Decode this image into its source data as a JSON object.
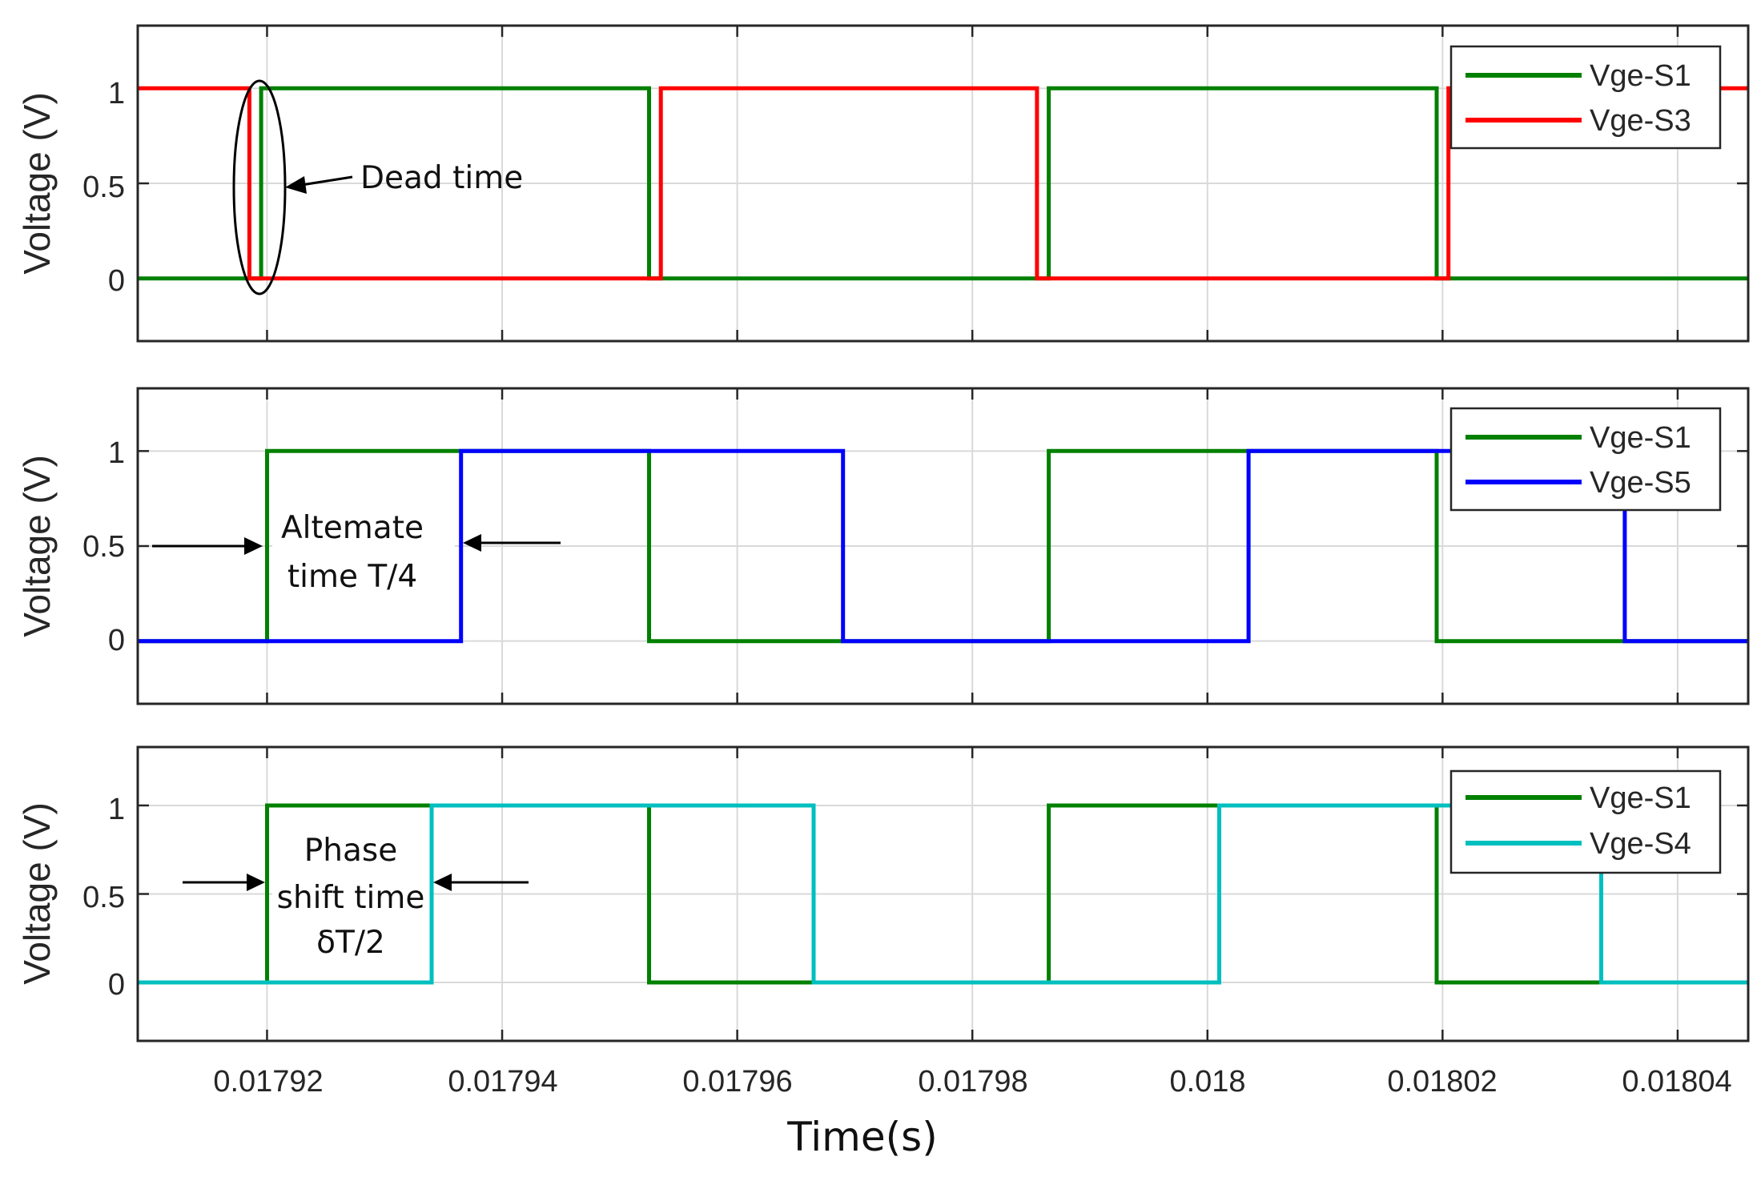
{
  "chart_data": [
    {
      "type": "line",
      "step": true,
      "ylabel": "Voltage (V)",
      "xlim": [
        0.017909,
        0.018046
      ],
      "ylim": [
        -0.33,
        1.33
      ],
      "yticks": [
        0,
        0.5,
        1
      ],
      "yticklabels": [
        "0",
        "0.5",
        "1"
      ],
      "grid": true,
      "legend_position": "top-right",
      "series": [
        {
          "name": "Vge-S1",
          "color": "#008000",
          "x": [
            0.017909,
            0.0179195,
            0.0179195,
            0.0179525,
            0.0179525,
            0.0179865,
            0.0179865,
            0.0180195,
            0.0180195,
            0.018046
          ],
          "y": [
            0,
            0,
            1,
            1,
            0,
            0,
            1,
            1,
            0,
            0
          ]
        },
        {
          "name": "Vge-S3",
          "color": "#ff0000",
          "x": [
            0.017909,
            0.0179185,
            0.0179185,
            0.0179535,
            0.0179535,
            0.0179855,
            0.0179855,
            0.0180205,
            0.0180205,
            0.018046
          ],
          "y": [
            1,
            1,
            0,
            0,
            1,
            1,
            0,
            0,
            1,
            1
          ]
        }
      ],
      "annotations": [
        {
          "text": "Dead time"
        }
      ]
    },
    {
      "type": "line",
      "step": true,
      "ylabel": "Voltage (V)",
      "xlim": [
        0.017909,
        0.018046
      ],
      "ylim": [
        -0.33,
        1.33
      ],
      "yticks": [
        0,
        0.5,
        1
      ],
      "yticklabels": [
        "0",
        "0.5",
        "1"
      ],
      "grid": true,
      "legend_position": "top-right",
      "series": [
        {
          "name": "Vge-S1",
          "color": "#008000",
          "x": [
            0.017909,
            0.01792,
            0.01792,
            0.0179525,
            0.0179525,
            0.0179865,
            0.0179865,
            0.0180195,
            0.0180195,
            0.018046
          ],
          "y": [
            0,
            0,
            1,
            1,
            0,
            0,
            1,
            1,
            0,
            0
          ]
        },
        {
          "name": "Vge-S5",
          "color": "#0000ff",
          "x": [
            0.017909,
            0.0179365,
            0.0179365,
            0.017969,
            0.017969,
            0.0180035,
            0.0180035,
            0.0180355,
            0.0180355,
            0.018046
          ],
          "y": [
            0,
            0,
            1,
            1,
            0,
            0,
            1,
            1,
            0,
            0
          ]
        }
      ],
      "annotations": [
        {
          "text_lines": [
            "Altemate",
            "time T/4"
          ]
        }
      ]
    },
    {
      "type": "line",
      "step": true,
      "ylabel": "Voltage (V)",
      "xlabel": "Time(s)",
      "xlim": [
        0.017909,
        0.018046
      ],
      "ylim": [
        -0.33,
        1.33
      ],
      "xticks": [
        0.01792,
        0.01794,
        0.01796,
        0.01798,
        0.018,
        0.01802,
        0.01804
      ],
      "xticklabels": [
        "0.01792",
        "0.01794",
        "0.01796",
        "0.01798",
        "0.018",
        "0.01802",
        "0.01804"
      ],
      "yticks": [
        0,
        0.5,
        1
      ],
      "yticklabels": [
        "0",
        "0.5",
        "1"
      ],
      "grid": true,
      "legend_position": "top-right",
      "series": [
        {
          "name": "Vge-S1",
          "color": "#008000",
          "x": [
            0.017909,
            0.01792,
            0.01792,
            0.0179525,
            0.0179525,
            0.0179865,
            0.0179865,
            0.0180195,
            0.0180195,
            0.018046
          ],
          "y": [
            0,
            0,
            1,
            1,
            0,
            0,
            1,
            1,
            0,
            0
          ]
        },
        {
          "name": "Vge-S4",
          "color": "#00bfbf",
          "x": [
            0.017909,
            0.017934,
            0.017934,
            0.0179665,
            0.0179665,
            0.018001,
            0.018001,
            0.0180335,
            0.0180335,
            0.018046
          ],
          "y": [
            0,
            0,
            1,
            1,
            0,
            0,
            1,
            1,
            0,
            0
          ]
        }
      ],
      "annotations": [
        {
          "text_lines": [
            "Phase",
            "shift time",
            "δT/2"
          ]
        }
      ]
    }
  ]
}
